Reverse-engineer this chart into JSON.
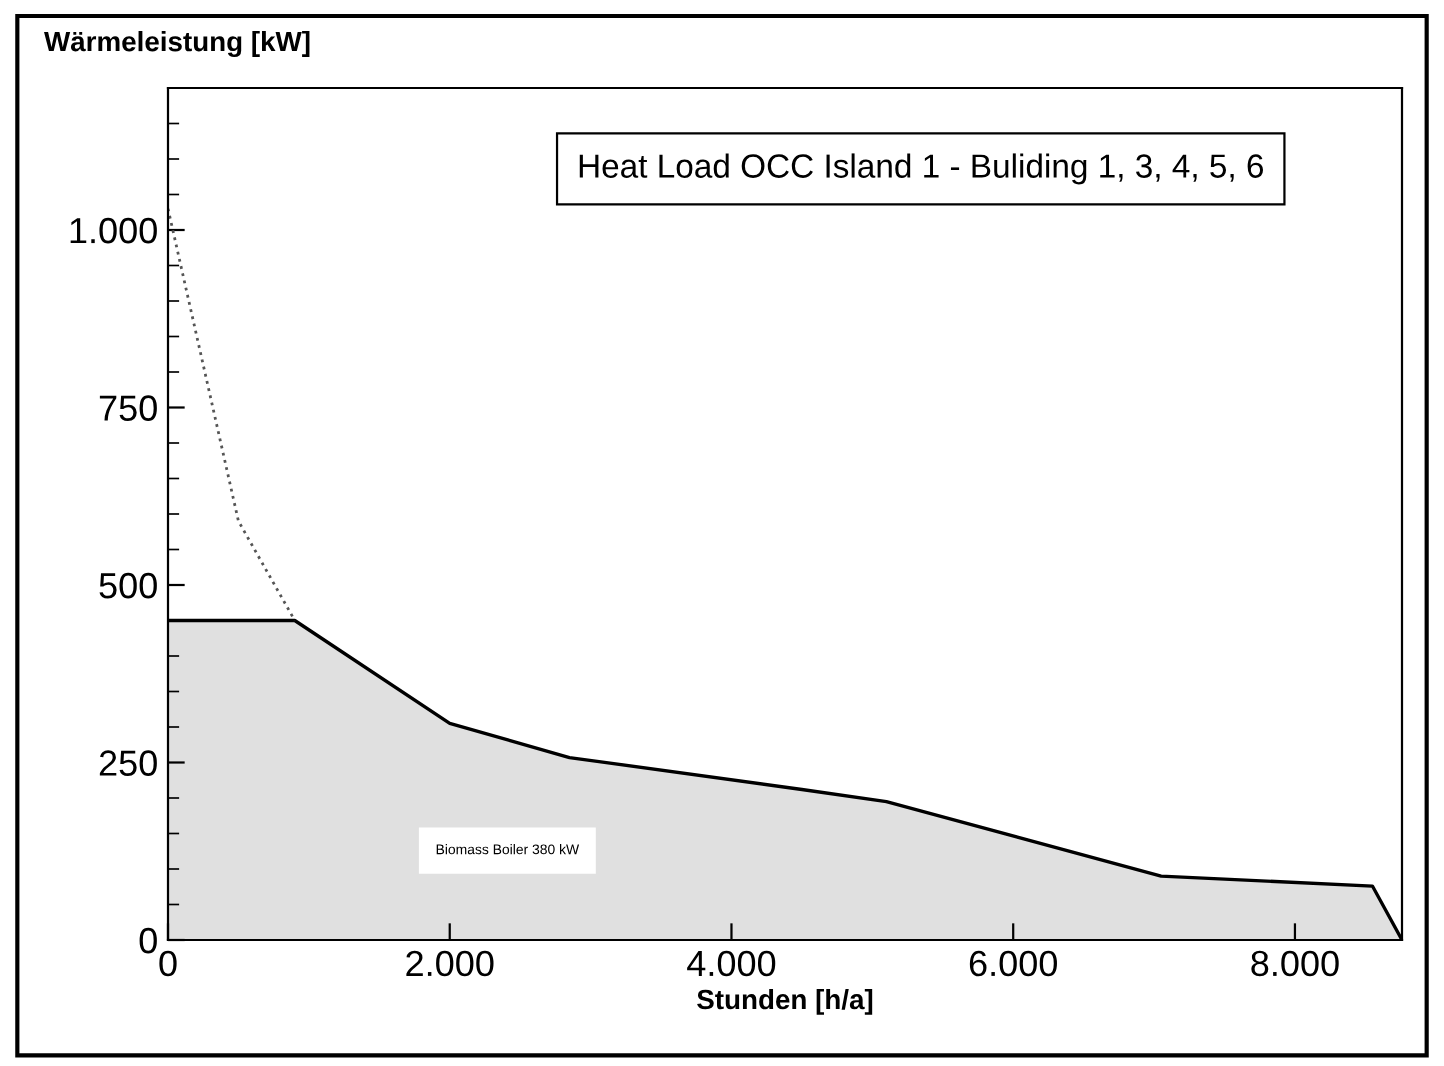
{
  "chart_data": {
    "type": "area",
    "title": "Heat Load OCC Island 1 - Buliding 1, 3, 4, 5, 6",
    "xlabel": "Stunden [h/a]",
    "ylabel": "Wärmeleistung [kW]",
    "series": [
      {
        "type": "area",
        "color": "#e0e0e0",
        "x": [
          0,
          900,
          2000,
          2850,
          4500,
          5100,
          7050,
          8550,
          8760
        ],
        "values": [
          450,
          450,
          305,
          257,
          212,
          195,
          90,
          76,
          0
        ],
        "line_style": "solid"
      },
      {
        "type": "line",
        "color": "#555555",
        "x": [
          0,
          500,
          900
        ],
        "values": [
          1030,
          590,
          450
        ],
        "line_style": "dotted"
      }
    ],
    "annotations": [
      "Biomass Boiler 380 kW"
    ],
    "xlim": [
      0,
      8760
    ],
    "ylim": [
      0,
      1200
    ],
    "xticks": [
      0,
      {
        "value": 2000,
        "label": "2.000"
      },
      {
        "value": 4000,
        "label": "4.000"
      },
      {
        "value": 6000,
        "label": "6.000"
      },
      {
        "value": 8000,
        "label": "8.000"
      }
    ],
    "yticks": [
      0,
      250,
      500,
      750,
      {
        "value": 1000,
        "label": "1.000"
      }
    ],
    "grid": false,
    "legend": false
  }
}
